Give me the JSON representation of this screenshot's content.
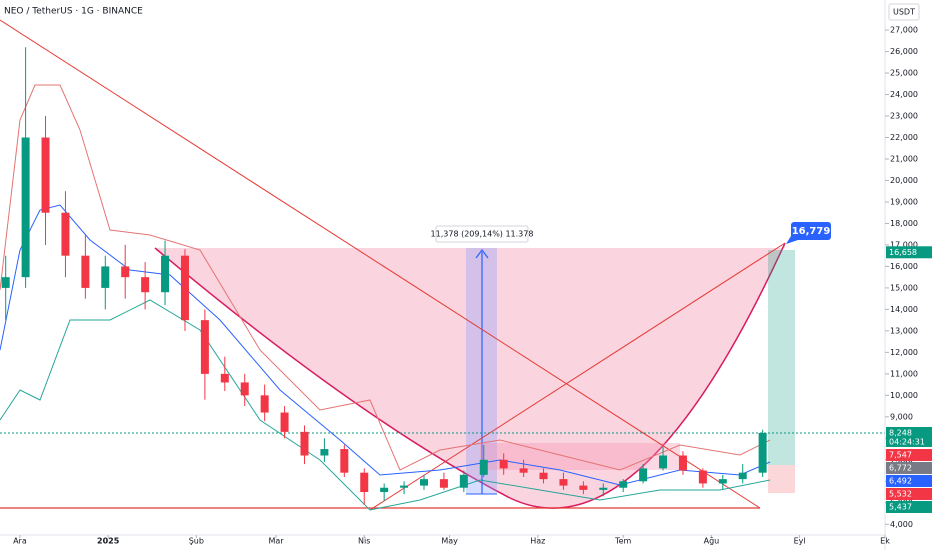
{
  "chart_data": {
    "type": "candlestick",
    "title": "NEO / TetherUS · 1G · BINANCE",
    "currency": "USDT",
    "x": [
      -5,
      2,
      9,
      16,
      23,
      30,
      37,
      44,
      51,
      58,
      65,
      72,
      79,
      86,
      93,
      100,
      107,
      114,
      121,
      128,
      135,
      142,
      149,
      156,
      163,
      170,
      177,
      184,
      191,
      198,
      205,
      212,
      219,
      226,
      233,
      240,
      247,
      254,
      261
    ],
    "open": [
      15000,
      15500,
      22000,
      18500,
      16500,
      15000,
      16000,
      15500,
      14800,
      16500,
      13500,
      11000,
      10600,
      10000,
      9200,
      8300,
      7200,
      7500,
      6400,
      5500,
      5700,
      5800,
      6100,
      5700,
      6300,
      7000,
      6600,
      6400,
      6100,
      5800,
      5600,
      5700,
      6000,
      6600,
      7200,
      6500,
      5900,
      6100,
      6400
    ],
    "high": [
      16500,
      26200,
      23000,
      19500,
      17500,
      16500,
      17000,
      16200,
      17200,
      16800,
      14000,
      11800,
      11000,
      10500,
      9500,
      8600,
      8000,
      7700,
      6600,
      5900,
      6000,
      6300,
      6400,
      6500,
      7700,
      7300,
      7000,
      6600,
      6400,
      6000,
      5900,
      6100,
      6800,
      7600,
      7400,
      6600,
      6300,
      6800,
      8400
    ],
    "low": [
      13500,
      15000,
      17000,
      15500,
      14500,
      14000,
      14500,
      14000,
      14200,
      13000,
      9800,
      10200,
      9500,
      8800,
      8000,
      6800,
      6900,
      6200,
      4900,
      5100,
      5400,
      5600,
      5600,
      5500,
      6200,
      6300,
      6200,
      5900,
      5600,
      5400,
      5300,
      5500,
      5900,
      6500,
      6300,
      5700,
      5600,
      5900,
      6200
    ],
    "close": [
      15500,
      22000,
      18500,
      16500,
      15000,
      16000,
      15500,
      14800,
      16500,
      13500,
      11000,
      10600,
      10000,
      9200,
      8300,
      7200,
      7500,
      6400,
      5500,
      5700,
      5800,
      6100,
      5700,
      6300,
      7000,
      6600,
      6400,
      6100,
      5800,
      5600,
      5700,
      6000,
      6600,
      7200,
      6500,
      5900,
      6100,
      6400,
      8248
    ],
    "up_color": "#089981",
    "down_color": "#f23645",
    "xlim": [
      -7,
      304
    ],
    "xticks": [
      {
        "value": 0,
        "label": "Ara"
      },
      {
        "value": 31,
        "label": "2025"
      },
      {
        "value": 62,
        "label": "Şub"
      },
      {
        "value": 90,
        "label": "Mar"
      },
      {
        "value": 121,
        "label": "Nis"
      },
      {
        "value": 151,
        "label": "May"
      },
      {
        "value": 182,
        "label": "Haz"
      },
      {
        "value": 212,
        "label": "Tem"
      },
      {
        "value": 243,
        "label": "Ağu"
      },
      {
        "value": 274,
        "label": "Eyl"
      },
      {
        "value": 304,
        "label": "Ek"
      }
    ],
    "ylim": [
      3500,
      28400
    ],
    "yticks": [
      {
        "value": 4000,
        "label": "4,000"
      },
      {
        "value": 5000,
        "label": "5,000"
      },
      {
        "value": 6000,
        "label": "6,000"
      },
      {
        "value": 7000,
        "label": "7,000"
      },
      {
        "value": 8000,
        "label": "8,000"
      },
      {
        "value": 9000,
        "label": "9,000"
      },
      {
        "value": 10000,
        "label": "10,000"
      },
      {
        "value": 11000,
        "label": "11,000"
      },
      {
        "value": 12000,
        "label": "12,000"
      },
      {
        "value": 13000,
        "label": "13,000"
      },
      {
        "value": 14000,
        "label": "14,000"
      },
      {
        "value": 15000,
        "label": "15,000"
      },
      {
        "value": 16000,
        "label": "16,000"
      },
      {
        "value": 17000,
        "label": "17,000"
      },
      {
        "value": 18000,
        "label": "18,000"
      },
      {
        "value": 19000,
        "label": "19,000"
      },
      {
        "value": 20000,
        "label": "20,000"
      },
      {
        "value": 21000,
        "label": "21,000"
      },
      {
        "value": 22000,
        "label": "22,000"
      },
      {
        "value": 23000,
        "label": "23,000"
      },
      {
        "value": 24000,
        "label": "24,000"
      },
      {
        "value": 25000,
        "label": "25,000"
      },
      {
        "value": 26000,
        "label": "26,000"
      },
      {
        "value": 27000,
        "label": "27,000"
      }
    ],
    "price_labels": [
      {
        "value": 16658,
        "label": "16,658",
        "color": "#089981"
      },
      {
        "value": 8248,
        "label": "8,248",
        "color": "#089981"
      },
      {
        "value": 7547,
        "label": "7,547",
        "color": "#f23645"
      },
      {
        "value": 6772,
        "label": "6,772",
        "color": "#787b86"
      },
      {
        "value": 6492,
        "label": "6,492",
        "color": "#2962ff"
      },
      {
        "value": 5532,
        "label": "5,532",
        "color": "#f23645"
      },
      {
        "value": 5437,
        "label": "5,437",
        "color": "#089981"
      }
    ],
    "countdown": "04:24:31",
    "measure_label": "11,378 (209,14%) 11.378",
    "target_label": "16,779"
  }
}
